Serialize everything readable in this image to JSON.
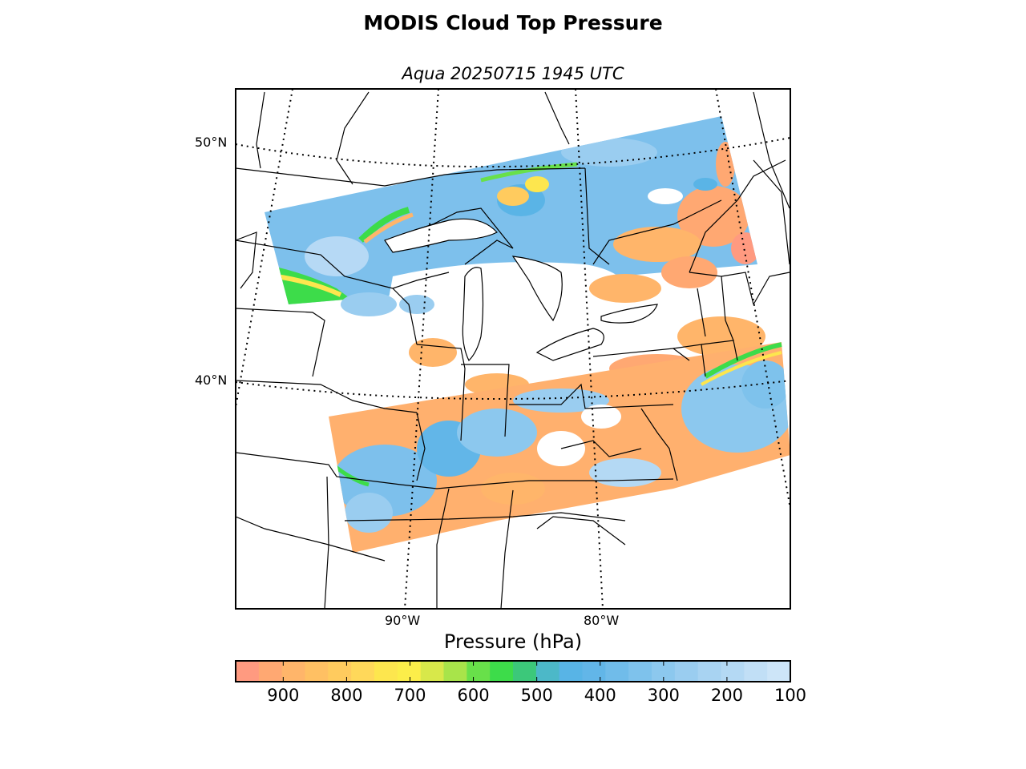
{
  "figure": {
    "title": "MODIS Cloud Top Pressure",
    "subtitle": "Aqua 20250715 1945 UTC"
  },
  "map": {
    "projection": "Lambert conformal",
    "region": "Eastern United States and Great Lakes",
    "latitude_labels": [
      "50°N",
      "40°N"
    ],
    "longitude_labels": [
      "90°W",
      "80°W"
    ],
    "graticule": "dotted",
    "overlays": [
      "coastlines",
      "country borders",
      "US state boundaries",
      "Great Lakes"
    ],
    "no_data_color": "#ffffff"
  },
  "colorbar": {
    "label": "Pressure (hPa)",
    "orientation": "horizontal",
    "range": [
      975,
      100
    ],
    "tick_labels": [
      "900",
      "800",
      "700",
      "600",
      "500",
      "400",
      "300",
      "200",
      "100"
    ],
    "colors": [
      "#ff9a80",
      "#ffa872",
      "#ffb56a",
      "#ffc063",
      "#ffcb5e",
      "#ffd85a",
      "#fde64e",
      "#fcee4a",
      "#d8e84a",
      "#a8e44a",
      "#68e04a",
      "#3ddc4a",
      "#3cc87a",
      "#4cb8c8",
      "#58b4e6",
      "#62b6e8",
      "#70bcea",
      "#7ec2ec",
      "#8cc8ee",
      "#9acdf0",
      "#a8d3f2",
      "#b4d9f4",
      "#c1dff6",
      "#cde5f8"
    ]
  },
  "chart_data": {
    "type": "heatmap",
    "title": "MODIS Cloud Top Pressure",
    "subtitle": "Aqua 20250715 1945 UTC",
    "value_label": "Pressure (hPa)",
    "value_range": [
      975,
      100
    ],
    "features": [
      {
        "region": "Northern Ontario / Upper Great Lakes band",
        "pressure_hPa": 300,
        "category": "high cloud"
      },
      {
        "region": "Central Michigan / Lake Michigan",
        "pressure_hPa": null,
        "category": "clear"
      },
      {
        "region": "Southern Ontario / New York / New England",
        "pressure_hPa": 850,
        "category": "low cloud"
      },
      {
        "region": "Ohio Valley / Kentucky / Tennessee",
        "pressure_hPa": 300,
        "category": "high cloud"
      },
      {
        "region": "Atlantic offshore east of Virginia",
        "pressure_hPa": 280,
        "category": "high cloud"
      }
    ]
  }
}
